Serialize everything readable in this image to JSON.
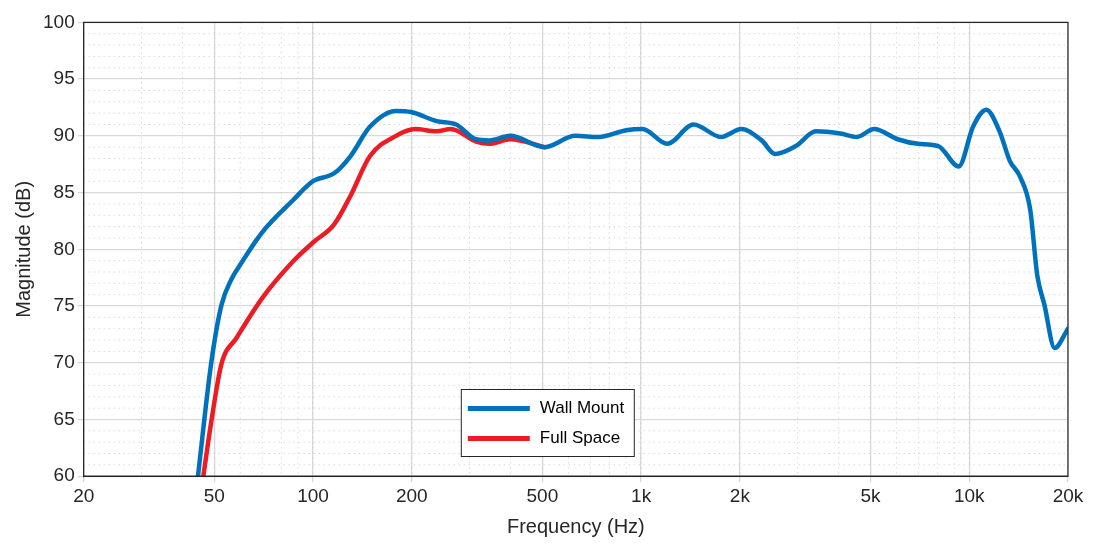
{
  "chart_data": {
    "type": "line",
    "xlabel": "Frequency (Hz)",
    "ylabel": "Magnitude (dB)",
    "log": "x",
    "xlim": [
      20,
      20000
    ],
    "xticks": [
      20,
      50,
      100,
      200,
      500,
      {
        "value": 1000,
        "label": "1k"
      },
      {
        "value": 2000,
        "label": "2k"
      },
      {
        "value": 5000,
        "label": "5k"
      },
      {
        "value": 10000,
        "label": "10k"
      },
      {
        "value": 20000,
        "label": "20k"
      }
    ],
    "ylim": [
      60,
      100
    ],
    "yticks": [
      60,
      65,
      70,
      75,
      80,
      85,
      90,
      95,
      100
    ],
    "grid": true,
    "legend": "bottom",
    "marker": "none",
    "line_style": "solid",
    "series": [
      {
        "name": "Wall Mount",
        "color": "#0072bd",
        "x": [
          44.6,
          48.9,
          52.6,
          56.5,
          60.8,
          70,
          86.7,
          100,
          116,
          130,
          149,
          179,
          199,
          238,
          273,
          314,
          345,
          399,
          508,
          630,
          743,
          901,
          1010,
          1200,
          1445,
          1753,
          2020,
          2330,
          2560,
          2960,
          3410,
          4050,
          4540,
          5130,
          6050,
          6980,
          8050,
          9290,
          10270,
          11270,
          12370,
          13290,
          14280,
          15340,
          16120,
          16950,
          18210,
          20000
        ],
        "values": [
          60,
          69.9,
          75.1,
          77.4,
          78.9,
          81.5,
          84.3,
          86,
          86.7,
          88.2,
          90.8,
          92.2,
          92.1,
          91.3,
          91,
          89.7,
          89.6,
          90,
          89,
          90,
          89.9,
          90.5,
          90.6,
          89.3,
          91,
          89.9,
          90.6,
          89.6,
          88.4,
          89.1,
          90.4,
          90.2,
          89.9,
          90.6,
          89.7,
          89.3,
          89.1,
          87.3,
          90.8,
          92.3,
          90.4,
          87.8,
          86.4,
          83.5,
          77.7,
          75.1,
          71.3,
          73
        ]
      },
      {
        "name": "Full Space",
        "color": "#ed1c24",
        "x": [
          46.3,
          48.9,
          52.6,
          58.5,
          70,
          86.7,
          100,
          116,
          130,
          149,
          179,
          205,
          238,
          263,
          314,
          345,
          399,
          508
        ],
        "values": [
          60,
          64.7,
          69.9,
          72.2,
          75.7,
          78.9,
          80.6,
          82.2,
          84.7,
          88.2,
          90,
          90.6,
          90.4,
          90.6,
          89.5,
          89.3,
          89.7,
          89
        ]
      }
    ]
  }
}
